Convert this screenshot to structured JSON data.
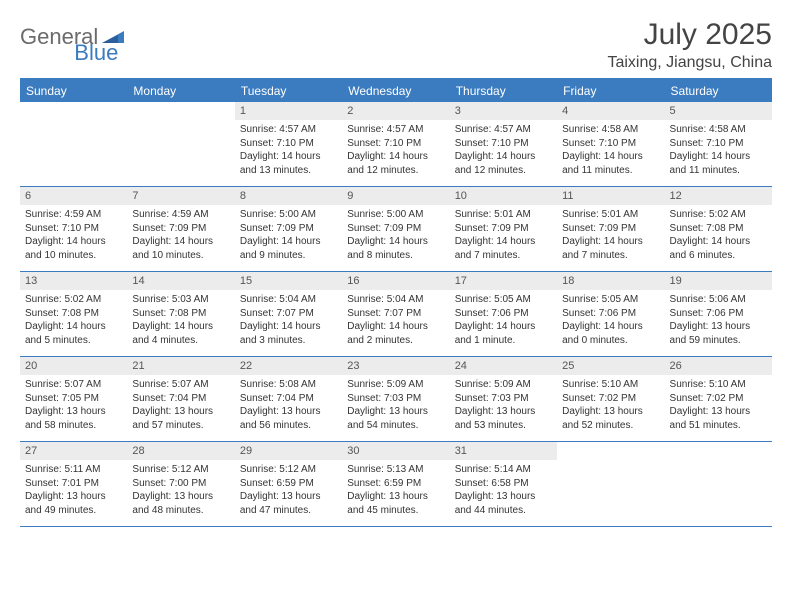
{
  "brand": {
    "part1": "General",
    "part2": "Blue"
  },
  "title": "July 2025",
  "location": "Taixing, Jiangsu, China",
  "colors": {
    "accent": "#3b7bbf",
    "header_text": "#ffffff",
    "date_bg": "#ececec",
    "text": "#343434",
    "logo_gray": "#6b6b6b"
  },
  "weekdays": [
    "Sunday",
    "Monday",
    "Tuesday",
    "Wednesday",
    "Thursday",
    "Friday",
    "Saturday"
  ],
  "weeks": [
    [
      null,
      null,
      {
        "n": "1",
        "sr": "4:57 AM",
        "ss": "7:10 PM",
        "dl": "14 hours and 13 minutes."
      },
      {
        "n": "2",
        "sr": "4:57 AM",
        "ss": "7:10 PM",
        "dl": "14 hours and 12 minutes."
      },
      {
        "n": "3",
        "sr": "4:57 AM",
        "ss": "7:10 PM",
        "dl": "14 hours and 12 minutes."
      },
      {
        "n": "4",
        "sr": "4:58 AM",
        "ss": "7:10 PM",
        "dl": "14 hours and 11 minutes."
      },
      {
        "n": "5",
        "sr": "4:58 AM",
        "ss": "7:10 PM",
        "dl": "14 hours and 11 minutes."
      }
    ],
    [
      {
        "n": "6",
        "sr": "4:59 AM",
        "ss": "7:10 PM",
        "dl": "14 hours and 10 minutes."
      },
      {
        "n": "7",
        "sr": "4:59 AM",
        "ss": "7:09 PM",
        "dl": "14 hours and 10 minutes."
      },
      {
        "n": "8",
        "sr": "5:00 AM",
        "ss": "7:09 PM",
        "dl": "14 hours and 9 minutes."
      },
      {
        "n": "9",
        "sr": "5:00 AM",
        "ss": "7:09 PM",
        "dl": "14 hours and 8 minutes."
      },
      {
        "n": "10",
        "sr": "5:01 AM",
        "ss": "7:09 PM",
        "dl": "14 hours and 7 minutes."
      },
      {
        "n": "11",
        "sr": "5:01 AM",
        "ss": "7:09 PM",
        "dl": "14 hours and 7 minutes."
      },
      {
        "n": "12",
        "sr": "5:02 AM",
        "ss": "7:08 PM",
        "dl": "14 hours and 6 minutes."
      }
    ],
    [
      {
        "n": "13",
        "sr": "5:02 AM",
        "ss": "7:08 PM",
        "dl": "14 hours and 5 minutes."
      },
      {
        "n": "14",
        "sr": "5:03 AM",
        "ss": "7:08 PM",
        "dl": "14 hours and 4 minutes."
      },
      {
        "n": "15",
        "sr": "5:04 AM",
        "ss": "7:07 PM",
        "dl": "14 hours and 3 minutes."
      },
      {
        "n": "16",
        "sr": "5:04 AM",
        "ss": "7:07 PM",
        "dl": "14 hours and 2 minutes."
      },
      {
        "n": "17",
        "sr": "5:05 AM",
        "ss": "7:06 PM",
        "dl": "14 hours and 1 minute."
      },
      {
        "n": "18",
        "sr": "5:05 AM",
        "ss": "7:06 PM",
        "dl": "14 hours and 0 minutes."
      },
      {
        "n": "19",
        "sr": "5:06 AM",
        "ss": "7:06 PM",
        "dl": "13 hours and 59 minutes."
      }
    ],
    [
      {
        "n": "20",
        "sr": "5:07 AM",
        "ss": "7:05 PM",
        "dl": "13 hours and 58 minutes."
      },
      {
        "n": "21",
        "sr": "5:07 AM",
        "ss": "7:04 PM",
        "dl": "13 hours and 57 minutes."
      },
      {
        "n": "22",
        "sr": "5:08 AM",
        "ss": "7:04 PM",
        "dl": "13 hours and 56 minutes."
      },
      {
        "n": "23",
        "sr": "5:09 AM",
        "ss": "7:03 PM",
        "dl": "13 hours and 54 minutes."
      },
      {
        "n": "24",
        "sr": "5:09 AM",
        "ss": "7:03 PM",
        "dl": "13 hours and 53 minutes."
      },
      {
        "n": "25",
        "sr": "5:10 AM",
        "ss": "7:02 PM",
        "dl": "13 hours and 52 minutes."
      },
      {
        "n": "26",
        "sr": "5:10 AM",
        "ss": "7:02 PM",
        "dl": "13 hours and 51 minutes."
      }
    ],
    [
      {
        "n": "27",
        "sr": "5:11 AM",
        "ss": "7:01 PM",
        "dl": "13 hours and 49 minutes."
      },
      {
        "n": "28",
        "sr": "5:12 AM",
        "ss": "7:00 PM",
        "dl": "13 hours and 48 minutes."
      },
      {
        "n": "29",
        "sr": "5:12 AM",
        "ss": "6:59 PM",
        "dl": "13 hours and 47 minutes."
      },
      {
        "n": "30",
        "sr": "5:13 AM",
        "ss": "6:59 PM",
        "dl": "13 hours and 45 minutes."
      },
      {
        "n": "31",
        "sr": "5:14 AM",
        "ss": "6:58 PM",
        "dl": "13 hours and 44 minutes."
      },
      null,
      null
    ]
  ],
  "labels": {
    "sunrise": "Sunrise:",
    "sunset": "Sunset:",
    "daylight": "Daylight:"
  }
}
